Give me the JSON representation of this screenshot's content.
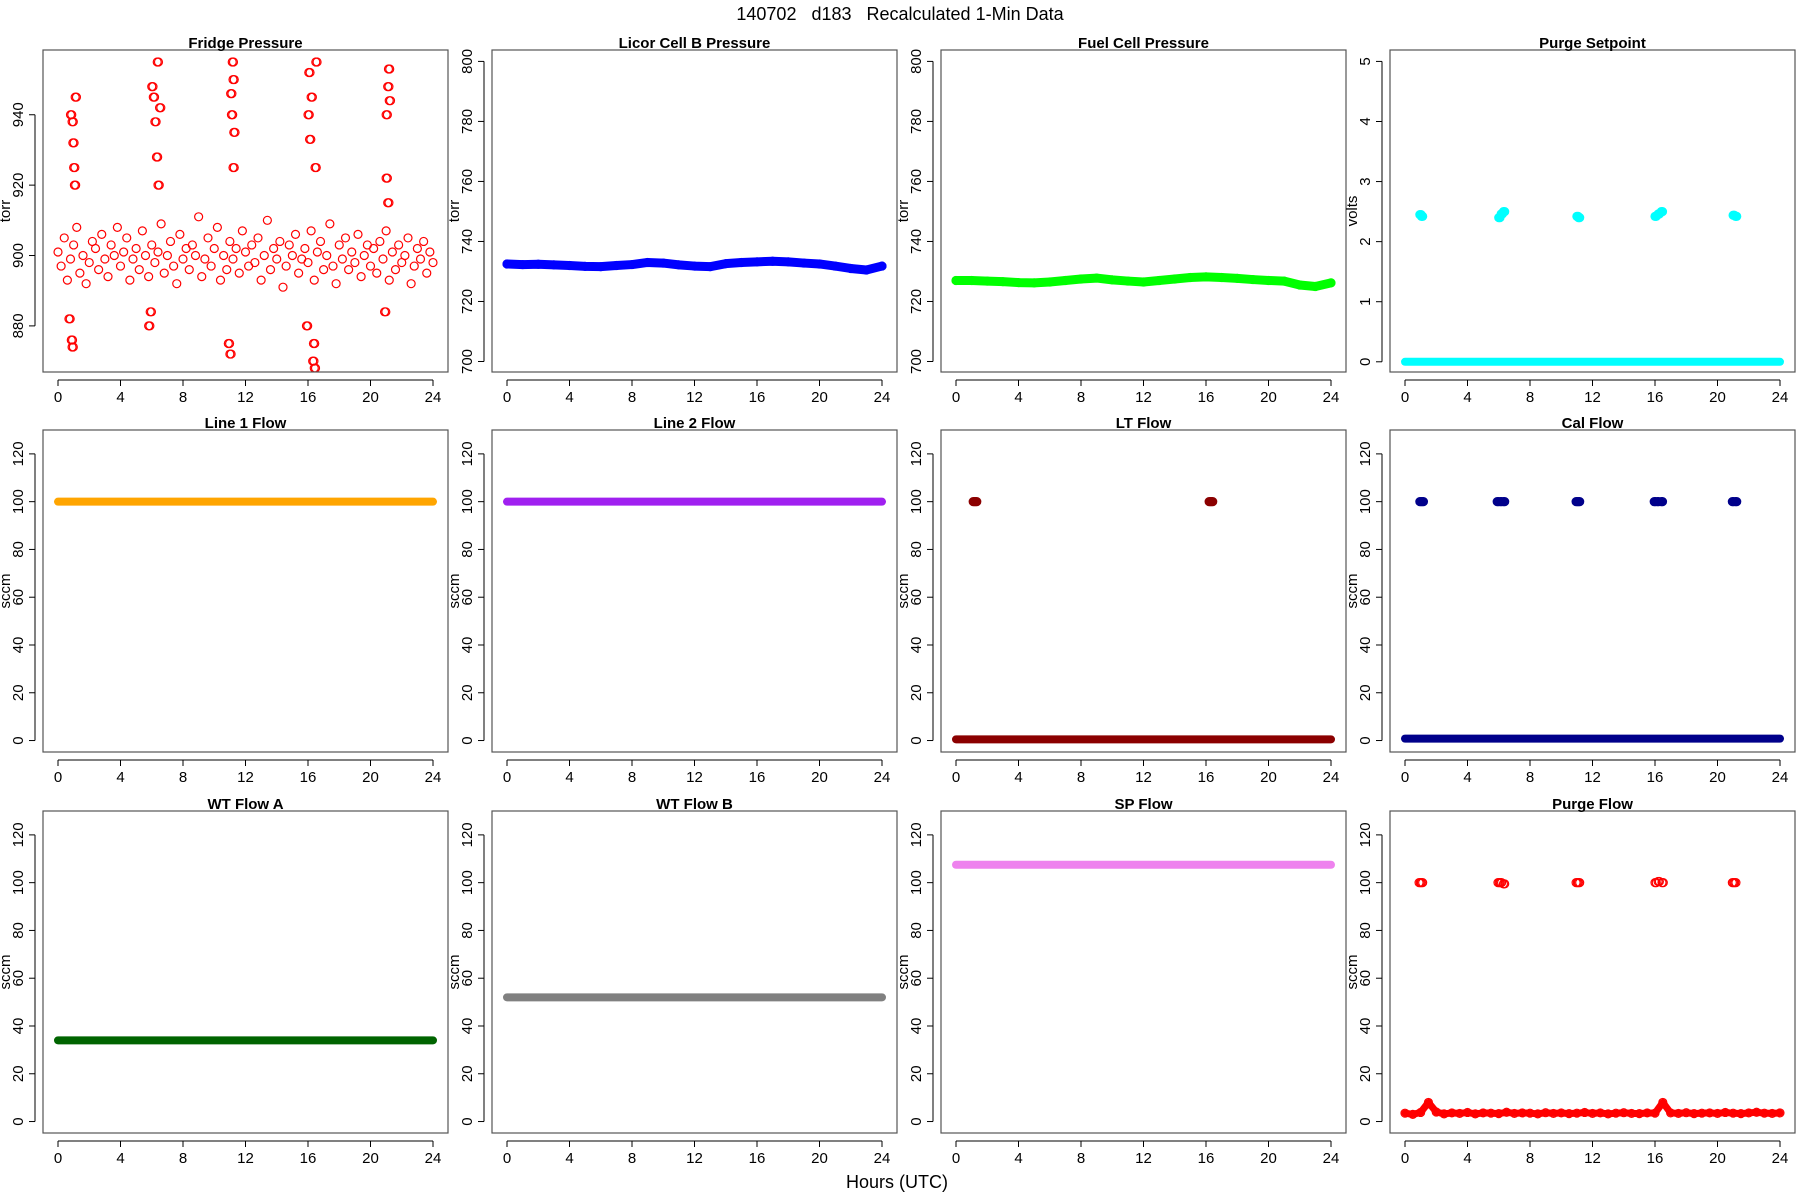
{
  "title": "140702   d183   Recalculated 1-Min Data",
  "xlabel": "Hours (UTC)",
  "chart_data": [
    {
      "type": "scatter",
      "title": "Fridge Pressure",
      "ylabel": "torr",
      "xlim": [
        -0.96,
        24.96
      ],
      "ylim": [
        866.9,
        958.4
      ],
      "yticks": [
        880,
        900,
        920,
        940
      ],
      "xticks": [
        0,
        4,
        8,
        12,
        16,
        20,
        24
      ],
      "color": "#ff0000",
      "hollow": true,
      "series": {
        "kind": "values",
        "x_step": 0.2,
        "values": [
          901,
          897,
          905,
          893,
          899,
          903,
          908,
          895,
          900,
          892,
          898,
          904,
          902,
          896,
          906,
          899,
          894,
          903,
          900,
          908,
          897,
          901,
          905,
          893,
          899,
          902,
          896,
          907,
          900,
          894,
          903,
          898,
          901,
          909,
          895,
          900,
          904,
          897,
          892,
          906,
          899,
          902,
          896,
          903,
          900,
          911,
          894,
          899,
          905,
          897,
          902,
          908,
          893,
          900,
          896,
          904,
          899,
          902,
          895,
          907,
          901,
          897,
          903,
          898,
          905,
          893,
          900,
          910,
          896,
          902,
          899,
          904,
          891,
          897,
          903,
          900,
          906,
          895,
          899,
          902,
          898,
          907,
          893,
          901,
          904,
          896,
          900,
          909,
          897,
          892,
          903,
          899,
          905,
          896,
          901,
          898,
          906,
          894,
          900,
          903,
          897,
          902,
          895,
          904,
          899,
          907,
          893,
          901,
          896,
          903,
          898,
          900,
          905,
          892,
          897,
          902,
          899,
          904,
          895,
          901,
          898
        ],
        "points": [
          [
            0.8,
            940
          ],
          [
            0.9,
            938
          ],
          [
            0.95,
            932
          ],
          [
            1.0,
            925
          ],
          [
            1.05,
            920
          ],
          [
            0.85,
            876
          ],
          [
            0.9,
            874
          ],
          [
            1.1,
            945
          ],
          [
            0.7,
            882
          ],
          [
            5.8,
            880
          ],
          [
            5.9,
            884
          ],
          [
            6.0,
            948
          ],
          [
            6.1,
            945
          ],
          [
            6.2,
            938
          ],
          [
            6.3,
            928
          ],
          [
            6.35,
            955
          ],
          [
            6.4,
            920
          ],
          [
            6.5,
            942
          ],
          [
            10.9,
            875
          ],
          [
            11.0,
            872
          ],
          [
            11.05,
            946
          ],
          [
            11.1,
            940
          ],
          [
            11.15,
            955
          ],
          [
            11.2,
            950
          ],
          [
            11.2,
            925
          ],
          [
            11.25,
            935
          ],
          [
            15.9,
            880
          ],
          [
            16.0,
            940
          ],
          [
            16.05,
            952
          ],
          [
            16.1,
            933
          ],
          [
            16.2,
            945
          ],
          [
            16.3,
            870
          ],
          [
            16.35,
            875
          ],
          [
            16.4,
            868
          ],
          [
            16.5,
            955
          ],
          [
            16.45,
            925
          ],
          [
            21.0,
            940
          ],
          [
            21.1,
            948
          ],
          [
            21.15,
            953
          ],
          [
            21.2,
            944
          ],
          [
            21.0,
            922
          ],
          [
            20.9,
            884
          ],
          [
            21.1,
            915
          ]
        ]
      }
    },
    {
      "type": "line",
      "title": "Licor Cell B Pressure",
      "ylabel": "torr",
      "xlim": [
        -0.96,
        24.96
      ],
      "ylim": [
        696.5,
        803.8
      ],
      "yticks": [
        700,
        720,
        740,
        760,
        780,
        800
      ],
      "xticks": [
        0,
        4,
        8,
        12,
        16,
        20,
        24
      ],
      "color": "#0000ff",
      "hollow": false,
      "series": {
        "kind": "values",
        "x_step": 1,
        "values": [
          732.5,
          732.3,
          732.4,
          732.2,
          732,
          731.7,
          731.6,
          732,
          732.3,
          733,
          732.8,
          732.2,
          731.8,
          731.6,
          732.6,
          733,
          733.2,
          733.4,
          733.2,
          732.8,
          732.5,
          731.8,
          731,
          730.5,
          731.8
        ]
      }
    },
    {
      "type": "line",
      "title": "Fuel Cell Pressure",
      "ylabel": "torr",
      "xlim": [
        -0.96,
        24.96
      ],
      "ylim": [
        696.5,
        803.8
      ],
      "yticks": [
        700,
        720,
        740,
        760,
        780,
        800
      ],
      "xticks": [
        0,
        4,
        8,
        12,
        16,
        20,
        24
      ],
      "color": "#00ff00",
      "hollow": false,
      "series": {
        "kind": "values",
        "x_step": 1,
        "values": [
          727,
          727,
          726.8,
          726.6,
          726.3,
          726.2,
          726.5,
          727,
          727.5,
          727.8,
          727.2,
          726.8,
          726.5,
          727,
          727.5,
          728,
          728.2,
          728,
          727.7,
          727.3,
          727,
          726.8,
          725.5,
          725,
          726.2
        ]
      }
    },
    {
      "type": "scatter",
      "title": "Purge Setpoint",
      "ylabel": "volts",
      "xlim": [
        -0.96,
        24.96
      ],
      "ylim": [
        -0.17,
        5.19
      ],
      "yticks": [
        0,
        1,
        2,
        3,
        4,
        5
      ],
      "xticks": [
        0,
        4,
        8,
        12,
        16,
        20,
        24
      ],
      "color": "#00ffff",
      "hollow": false,
      "series": {
        "kind": "constant",
        "value": 0,
        "points": [
          [
            0.95,
            2.45
          ],
          [
            1.05,
            2.42
          ],
          [
            6.0,
            2.4
          ],
          [
            6.15,
            2.46
          ],
          [
            6.3,
            2.5
          ],
          [
            11.0,
            2.42
          ],
          [
            11.1,
            2.4
          ],
          [
            16.0,
            2.42
          ],
          [
            16.2,
            2.46
          ],
          [
            16.4,
            2.5
          ],
          [
            21.0,
            2.44
          ],
          [
            21.15,
            2.42
          ]
        ]
      }
    },
    {
      "type": "line",
      "title": "Line 1 Flow",
      "ylabel": "sccm",
      "xlim": [
        -0.96,
        24.96
      ],
      "ylim": [
        -4.8,
        130
      ],
      "yticks": [
        0,
        20,
        40,
        60,
        80,
        100,
        120
      ],
      "xticks": [
        0,
        4,
        8,
        12,
        16,
        20,
        24
      ],
      "color": "#ffa500",
      "hollow": false,
      "series": {
        "kind": "constant",
        "value": 100
      }
    },
    {
      "type": "line",
      "title": "Line 2 Flow",
      "ylabel": "sccm",
      "xlim": [
        -0.96,
        24.96
      ],
      "ylim": [
        -4.8,
        130
      ],
      "yticks": [
        0,
        20,
        40,
        60,
        80,
        100,
        120
      ],
      "xticks": [
        0,
        4,
        8,
        12,
        16,
        20,
        24
      ],
      "color": "#a020f0",
      "hollow": false,
      "series": {
        "kind": "constant",
        "value": 100
      }
    },
    {
      "type": "scatter",
      "title": "LT Flow",
      "ylabel": "sccm",
      "xlim": [
        -0.96,
        24.96
      ],
      "ylim": [
        -4.8,
        130
      ],
      "yticks": [
        0,
        20,
        40,
        60,
        80,
        100,
        120
      ],
      "xticks": [
        0,
        4,
        8,
        12,
        16,
        20,
        24
      ],
      "color": "#8b0000",
      "hollow": false,
      "series": {
        "kind": "constant",
        "value": 0.5,
        "points": [
          [
            1.1,
            100
          ],
          [
            1.25,
            100
          ],
          [
            16.2,
            100
          ],
          [
            16.35,
            100
          ]
        ]
      }
    },
    {
      "type": "scatter",
      "title": "Cal Flow",
      "ylabel": "sccm",
      "xlim": [
        -0.96,
        24.96
      ],
      "ylim": [
        -4.8,
        130
      ],
      "yticks": [
        0,
        20,
        40,
        60,
        80,
        100,
        120
      ],
      "xticks": [
        0,
        4,
        8,
        12,
        16,
        20,
        24
      ],
      "color": "#00008b",
      "hollow": false,
      "series": {
        "kind": "constant",
        "value": 0.8,
        "points": [
          [
            0.95,
            100
          ],
          [
            1.1,
            100
          ],
          [
            5.9,
            100
          ],
          [
            6.1,
            100
          ],
          [
            6.3,
            100
          ],
          [
            10.95,
            100
          ],
          [
            11.1,
            100
          ],
          [
            15.95,
            100
          ],
          [
            16.15,
            100
          ],
          [
            16.4,
            100
          ],
          [
            20.95,
            100
          ],
          [
            21.15,
            100
          ]
        ]
      }
    },
    {
      "type": "line",
      "title": "WT Flow A",
      "ylabel": "sccm",
      "xlim": [
        -0.96,
        24.96
      ],
      "ylim": [
        -4.8,
        130
      ],
      "yticks": [
        0,
        20,
        40,
        60,
        80,
        100,
        120
      ],
      "xticks": [
        0,
        4,
        8,
        12,
        16,
        20,
        24
      ],
      "color": "#006400",
      "hollow": false,
      "series": {
        "kind": "constant",
        "value": 34
      }
    },
    {
      "type": "line",
      "title": "WT Flow B",
      "ylabel": "sccm",
      "xlim": [
        -0.96,
        24.96
      ],
      "ylim": [
        -4.8,
        130
      ],
      "yticks": [
        0,
        20,
        40,
        60,
        80,
        100,
        120
      ],
      "xticks": [
        0,
        4,
        8,
        12,
        16,
        20,
        24
      ],
      "color": "#808080",
      "hollow": false,
      "series": {
        "kind": "constant",
        "value": 52
      }
    },
    {
      "type": "line",
      "title": "SP Flow",
      "ylabel": "sccm",
      "xlim": [
        -0.96,
        24.96
      ],
      "ylim": [
        -4.8,
        130
      ],
      "yticks": [
        0,
        20,
        40,
        60,
        80,
        100,
        120
      ],
      "xticks": [
        0,
        4,
        8,
        12,
        16,
        20,
        24
      ],
      "color": "#ee82ee",
      "hollow": false,
      "series": {
        "kind": "constant",
        "value": 107.5
      }
    },
    {
      "type": "scatter",
      "title": "Purge Flow",
      "ylabel": "sccm",
      "xlim": [
        -0.96,
        24.96
      ],
      "ylim": [
        -4.8,
        130
      ],
      "yticks": [
        0,
        20,
        40,
        60,
        80,
        100,
        120
      ],
      "xticks": [
        0,
        4,
        8,
        12,
        16,
        20,
        24
      ],
      "color": "#ff0000",
      "hollow": true,
      "series": {
        "kind": "values",
        "x_step": 0.5,
        "values": [
          3.5,
          3,
          3.8,
          8,
          4,
          3.2,
          3.6,
          3.4,
          3.8,
          3.2,
          3.6,
          3.5,
          3.3,
          3.9,
          3.4,
          3.6,
          3.5,
          3.2,
          3.7,
          3.4,
          3.6,
          3.3,
          3.5,
          3.8,
          3.4,
          3.6,
          3.2,
          3.5,
          3.7,
          3.4,
          3.3,
          3.6,
          3.5,
          8,
          3.6,
          3.4,
          3.7,
          3.3,
          3.5,
          3.6,
          3.4,
          3.8,
          3.5,
          3.3,
          3.6,
          3.9,
          3.5,
          3.4,
          3.6
        ],
        "points": [
          [
            0.9,
            100
          ],
          [
            1.05,
            100
          ],
          [
            5.95,
            100
          ],
          [
            6.1,
            100
          ],
          [
            6.3,
            99.5
          ],
          [
            10.95,
            100
          ],
          [
            11.1,
            100
          ],
          [
            16.0,
            100
          ],
          [
            16.2,
            100.5
          ],
          [
            16.45,
            100
          ],
          [
            20.95,
            100
          ],
          [
            21.1,
            100
          ]
        ]
      }
    }
  ]
}
